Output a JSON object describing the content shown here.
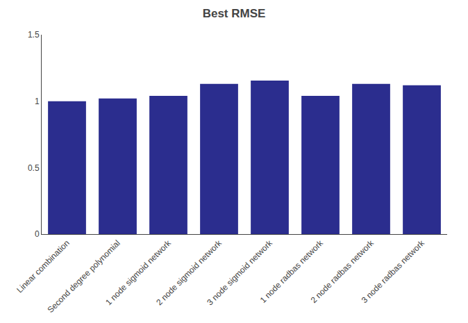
{
  "chart_data": {
    "type": "bar",
    "title": "Best RMSE",
    "categories": [
      "Linear combination",
      "Second degree polynomial",
      "1 node sigmoid network",
      "2 node sigmoid network",
      "3 node sigmoid network",
      "1 node radbas network",
      "2 node radbas network",
      "3 node radbas network"
    ],
    "values": [
      1.0,
      1.02,
      1.04,
      1.13,
      1.155,
      1.04,
      1.13,
      1.12
    ],
    "color": "#2b2d8e",
    "ylim": [
      0,
      1.5
    ],
    "yticks": [
      0,
      0.5,
      1,
      1.5
    ],
    "grid": false
  }
}
